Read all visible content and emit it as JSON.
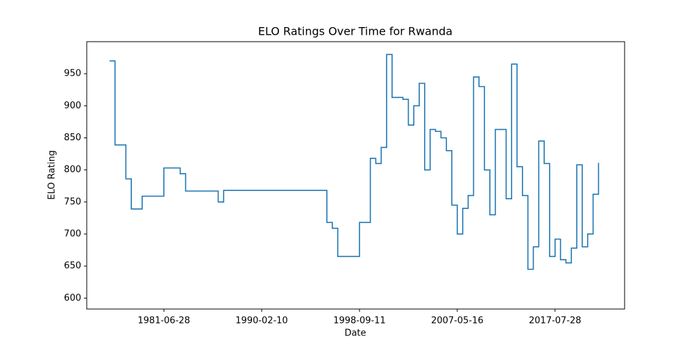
{
  "chart_data": {
    "type": "line",
    "title": "ELO Ratings Over Time for Rwanda",
    "xlabel": "Date",
    "ylabel": "ELO Rating",
    "drawstyle": "steps-post",
    "color": "#1f77b4",
    "categories": [
      null,
      null,
      null,
      null,
      null,
      null,
      null,
      null,
      null,
      null,
      "1981-06-28",
      null,
      null,
      null,
      null,
      null,
      null,
      null,
      null,
      null,
      null,
      null,
      null,
      null,
      null,
      null,
      null,
      null,
      "1990-02-10",
      null,
      null,
      null,
      null,
      null,
      null,
      null,
      null,
      null,
      null,
      null,
      null,
      null,
      null,
      null,
      null,
      null,
      "1998-09-11",
      null,
      null,
      null,
      null,
      null,
      null,
      null,
      null,
      null,
      null,
      null,
      null,
      null,
      null,
      null,
      null,
      null,
      "2007-05-16",
      null,
      null,
      null,
      null,
      null,
      null,
      null,
      null,
      null,
      null,
      null,
      null,
      null,
      null,
      null,
      null,
      null,
      "2017-07-28",
      null,
      null,
      null,
      null,
      null,
      null,
      null,
      null
    ],
    "values": [
      970,
      839,
      839,
      786,
      739,
      739,
      759,
      759,
      759,
      759,
      803,
      803,
      803,
      794,
      767,
      767,
      767,
      767,
      767,
      767,
      750,
      768,
      768,
      768,
      768,
      768,
      768,
      768,
      768,
      768,
      768,
      768,
      768,
      768,
      768,
      768,
      768,
      768,
      768,
      768,
      718,
      709,
      665,
      665,
      665,
      665,
      718,
      718,
      818,
      810,
      835,
      980,
      913,
      913,
      910,
      870,
      900,
      935,
      800,
      863,
      860,
      850,
      830,
      745,
      700,
      740,
      760,
      945,
      930,
      800,
      730,
      863,
      863,
      755,
      965,
      805,
      760,
      645,
      680,
      845,
      810,
      665,
      692,
      660,
      655,
      678,
      808,
      680,
      700,
      762,
      811
    ],
    "xlim": [
      -4.2,
      94.8
    ],
    "ylim": [
      583,
      1000
    ],
    "yticks": [
      600,
      650,
      700,
      750,
      800,
      850,
      900,
      950
    ]
  }
}
